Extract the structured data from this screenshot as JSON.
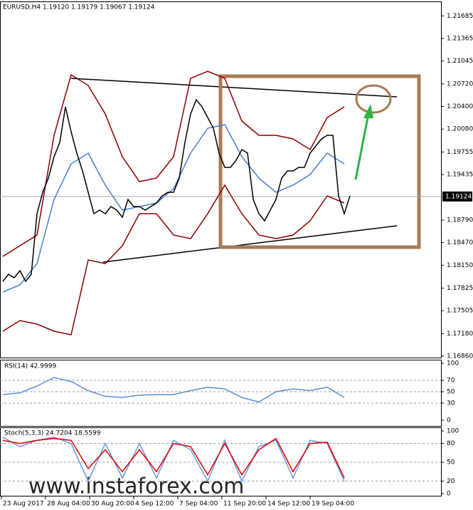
{
  "watermark": "www.instaforex.com",
  "chart_data": [
    {
      "type": "line",
      "title": "EURUSD,H4  1.19120 1.19179 1.19067 1.19124",
      "last_price": 1.19124,
      "xlim": [
        -0.5,
        77
      ],
      "xticks": [
        {
          "value": -0.25,
          "label": "23 Aug 2017"
        },
        {
          "value": 7.5,
          "label": "28 Aug 04:00"
        },
        {
          "value": 15.25,
          "label": "30 Aug 20:00"
        },
        {
          "value": 23,
          "label": "4 Sep 12:00"
        },
        {
          "value": 30.75,
          "label": "7 Sep 04:00"
        },
        {
          "value": 38.5,
          "label": "11 Sep 20:00"
        },
        {
          "value": 46.25,
          "label": "14 Sep 12:00"
        },
        {
          "value": 54,
          "label": "19 Sep 04:00"
        }
      ],
      "ylim": [
        1.1683,
        1.2189
      ],
      "yticks": [
        {
          "value": 1.21685,
          "label": "1.21685"
        },
        {
          "value": 1.21365,
          "label": "1.21365"
        },
        {
          "value": 1.21045,
          "label": "1.21045"
        },
        {
          "value": 1.2072,
          "label": "1.20720"
        },
        {
          "value": 1.204,
          "label": "1.20400"
        },
        {
          "value": 1.2008,
          "label": "1.20080"
        },
        {
          "value": 1.19755,
          "label": "1.19755"
        },
        {
          "value": 1.19435,
          "label": "1.19435"
        },
        {
          "value": 1.1879,
          "label": "1.18790"
        },
        {
          "value": 1.1847,
          "label": "1.18470"
        },
        {
          "value": 1.1815,
          "label": "1.18150"
        },
        {
          "value": 1.17825,
          "label": "1.17825"
        },
        {
          "value": 1.17505,
          "label": "1.17505"
        },
        {
          "value": 1.1718,
          "label": "1.17180"
        },
        {
          "value": 1.1686,
          "label": "1.16860"
        }
      ],
      "series": [
        {
          "color": "#8b0000",
          "x": [
            0,
            3,
            6,
            9,
            12,
            15,
            18,
            21,
            24,
            27,
            30,
            33,
            36,
            39,
            42,
            45,
            48,
            51,
            54,
            57,
            60
          ],
          "values": [
            1.18274,
            1.18426,
            1.18577,
            1.19991,
            1.2085,
            1.20698,
            1.20294,
            1.19688,
            1.19335,
            1.19385,
            1.19688,
            1.20799,
            1.209,
            1.20799,
            1.20193,
            1.19991,
            1.19991,
            1.19941,
            1.19789,
            1.20244,
            1.20395
          ]
        },
        {
          "color": "#8b0000",
          "x": [
            0,
            3,
            6,
            9,
            12,
            15,
            18,
            21,
            24,
            27,
            30,
            33,
            36,
            39,
            42,
            45,
            48,
            51,
            54,
            57,
            60
          ],
          "values": [
            1.17214,
            1.17365,
            1.17315,
            1.17214,
            1.17163,
            1.18224,
            1.18173,
            1.18426,
            1.1888,
            1.1888,
            1.18577,
            1.18527,
            1.1888,
            1.19284,
            1.1888,
            1.18577,
            1.18527,
            1.18577,
            1.18779,
            1.19133,
            1.19032
          ]
        },
        {
          "color": "#4a7fd6",
          "x": [
            0,
            3,
            6,
            9,
            12,
            15,
            18,
            21,
            24,
            27,
            30,
            33,
            36,
            39,
            42,
            45,
            48,
            51,
            54,
            57,
            60
          ],
          "values": [
            1.17769,
            1.1787,
            1.18173,
            1.19082,
            1.19587,
            1.19739,
            1.19284,
            1.18931,
            1.18981,
            1.19032,
            1.19234,
            1.19739,
            1.20092,
            1.20143,
            1.19688,
            1.19385,
            1.19183,
            1.19284,
            1.19436,
            1.19739,
            1.19587
          ]
        },
        {
          "color": "#000000",
          "x": [
            0,
            1,
            2,
            3,
            4,
            5,
            6,
            7,
            8,
            9,
            10,
            11,
            12,
            13,
            14,
            15,
            16,
            17,
            18,
            19,
            20,
            21,
            22,
            23,
            24,
            25,
            26,
            27,
            28,
            29,
            30,
            31,
            32,
            33,
            34,
            35,
            36,
            37,
            38,
            39,
            40,
            41,
            42,
            43,
            44,
            45,
            46,
            47,
            48,
            49,
            50,
            51,
            52,
            53,
            54,
            55,
            56,
            57,
            58,
            59,
            60,
            61
          ],
          "values": [
            1.17921,
            1.18022,
            1.17971,
            1.18072,
            1.17921,
            1.18022,
            1.1888,
            1.19183,
            1.19385,
            1.19688,
            1.1989,
            1.20395,
            1.20042,
            1.19739,
            1.19486,
            1.19183,
            1.1888,
            1.18931,
            1.1888,
            1.18981,
            1.18931,
            1.1883,
            1.19082,
            1.18981,
            1.18981,
            1.18931,
            1.18981,
            1.19032,
            1.19133,
            1.19183,
            1.19183,
            1.19385,
            1.1989,
            1.20294,
            1.20496,
            1.20395,
            1.20244,
            1.20092,
            1.19739,
            1.19537,
            1.19537,
            1.19638,
            1.19789,
            1.19739,
            1.19082,
            1.1888,
            1.18779,
            1.18931,
            1.19082,
            1.19385,
            1.19486,
            1.19486,
            1.19537,
            1.19537,
            1.19739,
            1.1984,
            1.19941,
            1.19991,
            1.19991,
            1.19133,
            1.1888,
            1.19133
          ]
        }
      ]
    },
    {
      "type": "line",
      "title": "RSI(14) 42.9999",
      "ylim": [
        0,
        100
      ],
      "yticks": [
        100,
        70,
        50,
        30,
        0
      ],
      "grid": true,
      "series": [
        {
          "color": "#5b8fd8",
          "x": [
            0,
            3,
            6,
            9,
            12,
            15,
            18,
            21,
            24,
            27,
            30,
            33,
            36,
            39,
            42,
            45,
            48,
            51,
            54,
            57,
            60
          ],
          "values": [
            45,
            48,
            60,
            75,
            68,
            52,
            42,
            40,
            44,
            45,
            45,
            52,
            58,
            55,
            40,
            32,
            50,
            55,
            52,
            58,
            40
          ]
        }
      ]
    },
    {
      "type": "line",
      "title": "Stoch(5,3,3) 24.7204 18.5599",
      "ylim": [
        0,
        100
      ],
      "yticks": [
        100,
        80,
        50,
        20,
        0
      ],
      "grid": true,
      "series": [
        {
          "color": "#6a9ae0",
          "x": [
            0,
            3,
            6,
            9,
            12,
            15,
            18,
            21,
            24,
            27,
            30,
            33,
            36,
            39,
            42,
            45,
            48,
            51,
            54,
            57,
            60
          ],
          "values": [
            90,
            75,
            85,
            90,
            80,
            20,
            80,
            25,
            80,
            25,
            85,
            70,
            20,
            85,
            20,
            75,
            85,
            25,
            85,
            80,
            20
          ]
        },
        {
          "color": "#e00000",
          "x": [
            0,
            3,
            6,
            9,
            12,
            15,
            18,
            21,
            24,
            27,
            30,
            33,
            36,
            39,
            42,
            45,
            48,
            51,
            54,
            57,
            60
          ],
          "values": [
            85,
            80,
            85,
            88,
            85,
            40,
            70,
            35,
            70,
            35,
            80,
            75,
            30,
            80,
            30,
            70,
            88,
            35,
            80,
            82,
            25
          ]
        }
      ]
    }
  ]
}
